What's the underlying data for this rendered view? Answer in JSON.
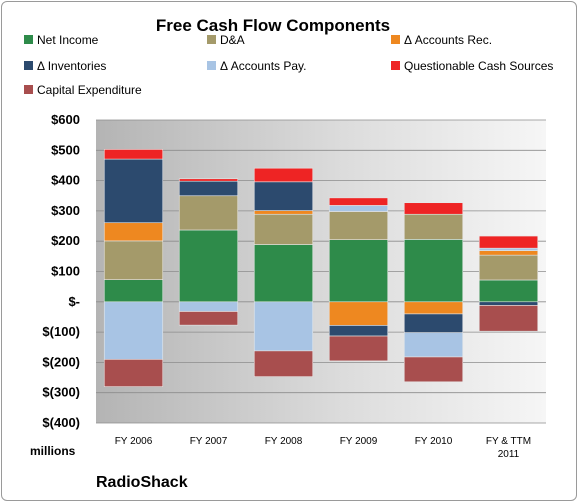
{
  "chart_data": {
    "type": "bar",
    "stacked": true,
    "title": "Free Cash Flow Components",
    "units_label": "millions",
    "brand": "RadioShack",
    "categories": [
      "FY 2006",
      "FY 2007",
      "FY 2008",
      "FY 2009",
      "FY 2010",
      "FY & TTM 2011"
    ],
    "ylim": [
      -400,
      600
    ],
    "yticks": [
      -400,
      -300,
      -200,
      -100,
      0,
      100,
      200,
      300,
      400,
      500,
      600
    ],
    "ytick_labels": [
      "$(400)",
      "$(300)",
      "$(200)",
      "$(100)",
      "$-",
      "$100",
      "$200",
      "$300",
      "$400",
      "$500",
      "$600"
    ],
    "grid": true,
    "legend_position": "top",
    "series": [
      {
        "name": "Net Income",
        "color": "#2e8b4a",
        "values": [
          73,
          237,
          189,
          205,
          206,
          72
        ]
      },
      {
        "name": "D&A",
        "color": "#a49a6a",
        "values": [
          128,
          113,
          100,
          93,
          83,
          82
        ]
      },
      {
        "name": "Δ Accounts Rec.",
        "color": "#ee8820",
        "values": [
          60,
          0,
          12,
          -78,
          -40,
          15
        ]
      },
      {
        "name": "Δ Inventories",
        "color": "#2c4a6e",
        "values": [
          210,
          48,
          95,
          -35,
          -62,
          -12
        ]
      },
      {
        "name": "Δ Accounts Pay.",
        "color": "#a8c4e4",
        "values": [
          -190,
          -32,
          -162,
          20,
          -80,
          8
        ]
      },
      {
        "name": "Questionable Cash Sources",
        "color": "#ee2424",
        "values": [
          32,
          8,
          45,
          25,
          38,
          40
        ]
      },
      {
        "name": "Capital Expenditure",
        "color": "#a84e4e",
        "values": [
          -90,
          -45,
          -85,
          -82,
          -82,
          -85
        ]
      }
    ]
  }
}
